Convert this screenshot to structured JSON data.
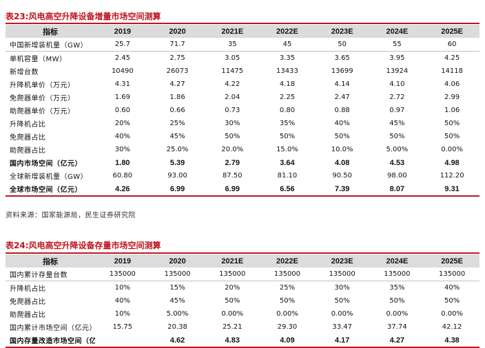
{
  "table23": {
    "title": "表23:风电高空升降设备增量市场空间测算",
    "headers": [
      "指标",
      "2019",
      "2020",
      "2021E",
      "2022E",
      "2023E",
      "2024E",
      "2025E"
    ],
    "rows": [
      {
        "label": "中国新增装机量（GW）",
        "values": [
          "25.7",
          "71.7",
          "35",
          "45",
          "50",
          "55",
          "60"
        ]
      },
      {
        "label": "单机容量（MW）",
        "values": [
          "2.45",
          "2.75",
          "3.05",
          "3.35",
          "3.65",
          "3.95",
          "4.25"
        ]
      },
      {
        "label": "新增台数",
        "values": [
          "10490",
          "26073",
          "11475",
          "13433",
          "13699",
          "13924",
          "14118"
        ]
      },
      {
        "label": "升降机单价（万元）",
        "values": [
          "4.31",
          "4.27",
          "4.22",
          "4.18",
          "4.14",
          "4.10",
          "4.06"
        ]
      },
      {
        "label": "免爬器单价（万元）",
        "values": [
          "1.69",
          "1.86",
          "2.04",
          "2.25",
          "2.47",
          "2.72",
          "2.99"
        ]
      },
      {
        "label": "助爬器单价（万元）",
        "values": [
          "0.60",
          "0.66",
          "0.73",
          "0.80",
          "0.88",
          "0.97",
          "1.06"
        ]
      },
      {
        "label": "升降机占比",
        "values": [
          "20%",
          "25%",
          "30%",
          "35%",
          "40%",
          "45%",
          "50%"
        ]
      },
      {
        "label": "免爬器占比",
        "values": [
          "40%",
          "45%",
          "50%",
          "50%",
          "50%",
          "50%",
          "50%"
        ]
      },
      {
        "label": "助爬器占比",
        "values": [
          "30%",
          "25.0%",
          "20.0%",
          "15.0%",
          "10.0%",
          "5.00%",
          "0.00%"
        ]
      },
      {
        "label": "国内市场空间（亿元）",
        "values": [
          "1.80",
          "5.39",
          "2.79",
          "3.64",
          "4.08",
          "4.53",
          "4.98"
        ],
        "bold": true
      },
      {
        "label": "全球新增装机量（GW）",
        "values": [
          "60.80",
          "93.00",
          "87.50",
          "81.10",
          "90.50",
          "98.00",
          "112.20"
        ]
      },
      {
        "label": "全球市场空间（亿元）",
        "values": [
          "4.26",
          "6.99",
          "6.99",
          "6.56",
          "7.39",
          "8.07",
          "9.31"
        ],
        "bold": true
      }
    ]
  },
  "source": "资料来源：国家能源局，民生证券研究院",
  "table24": {
    "title": "表24:风电高空升降设备存量市场空间测算",
    "headers": [
      "指标",
      "2019",
      "2020",
      "2021E",
      "2022E",
      "2023E",
      "2024E",
      "2025E"
    ],
    "rows": [
      {
        "label": "国内累计存量台数",
        "values": [
          "135000",
          "135000",
          "135000",
          "135000",
          "135000",
          "135000",
          "135000"
        ]
      },
      {
        "label": "升降机占比",
        "values": [
          "10%",
          "15%",
          "20%",
          "25%",
          "30%",
          "35%",
          "40%"
        ]
      },
      {
        "label": "免爬器占比",
        "values": [
          "40%",
          "45%",
          "50%",
          "50%",
          "50%",
          "50%",
          "50%"
        ]
      },
      {
        "label": "助爬器占比",
        "values": [
          "10%",
          "5.00%",
          "0.00%",
          "0.00%",
          "0.00%",
          "0.00%",
          "0.00%"
        ]
      },
      {
        "label": "国内累计市场空间（亿元）",
        "values": [
          "15.75",
          "20.38",
          "25.21",
          "29.30",
          "33.47",
          "37.74",
          "42.12"
        ]
      },
      {
        "label": "国内存量改造市场空间（亿元）",
        "values": [
          "",
          "4.62",
          "4.83",
          "4.09",
          "4.17",
          "4.27",
          "4.38"
        ],
        "bold": true
      }
    ]
  }
}
